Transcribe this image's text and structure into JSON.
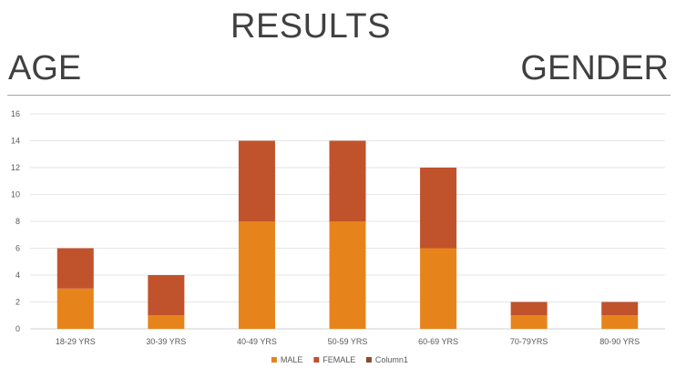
{
  "header": {
    "title": "RESULTS",
    "left_heading": "AGE",
    "right_heading": "GENDER"
  },
  "chart_data": {
    "type": "bar",
    "stacked": true,
    "categories": [
      "18-29 YRS",
      "30-39 YRS",
      "40-49 YRS",
      "50-59 YRS",
      "60-69 YRS",
      "70-79YRS",
      "80-90 YRS"
    ],
    "series": [
      {
        "name": "MALE",
        "values": [
          3,
          1,
          8,
          8,
          6,
          1,
          1
        ],
        "color": "#E6841B"
      },
      {
        "name": "FEMALE",
        "values": [
          3,
          3,
          6,
          6,
          6,
          1,
          1
        ],
        "color": "#C0522C"
      },
      {
        "name": "Column1",
        "values": [
          0,
          0,
          0,
          0,
          0,
          0,
          0
        ],
        "color": "#8B4A2E"
      }
    ],
    "yticks": [
      0,
      2,
      4,
      6,
      8,
      10,
      12,
      14,
      16
    ],
    "ylim": [
      0,
      16
    ],
    "grid": true,
    "legend_position": "bottom",
    "title": "",
    "xlabel": "",
    "ylabel": ""
  }
}
